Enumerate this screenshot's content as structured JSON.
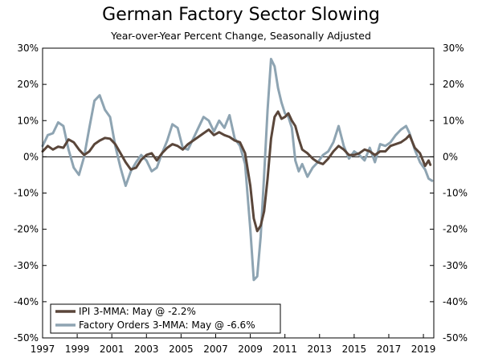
{
  "title": "German Factory Sector Slowing",
  "subtitle": "Year-over-Year Percent Change, Seasonally Adjusted",
  "colors": {
    "ipi": "#5a463a",
    "orders": "#8ea4b2",
    "zero": "#000000"
  },
  "chart_data": {
    "type": "line",
    "title": "German Factory Sector Slowing",
    "subtitle": "Year-over-Year Percent Change, Seasonally Adjusted",
    "xlabel": "",
    "ylabel": "",
    "xlim": [
      1997,
      2019.6
    ],
    "ylim": [
      -50,
      30
    ],
    "y_ticks": [
      30,
      20,
      10,
      0,
      -10,
      -20,
      -30,
      -40,
      -50
    ],
    "y_tick_labels": [
      "30%",
      "20%",
      "10%",
      "0%",
      "-10%",
      "-20%",
      "-30%",
      "-40%",
      "-50%"
    ],
    "x_ticks": [
      1997,
      1999,
      2001,
      2003,
      2005,
      2007,
      2009,
      2011,
      2013,
      2015,
      2017,
      2019
    ],
    "x_tick_labels": [
      "1997",
      "1999",
      "2001",
      "2003",
      "2005",
      "2007",
      "2009",
      "2011",
      "2013",
      "2015",
      "2017",
      "2019"
    ],
    "legend_position": "bottom-left",
    "series": [
      {
        "name": "IPI 3-MMA: May @ -2.2%",
        "points": [
          [
            1997.0,
            1.5
          ],
          [
            1997.3,
            3.0
          ],
          [
            1997.6,
            2.0
          ],
          [
            1997.9,
            2.8
          ],
          [
            1998.2,
            2.5
          ],
          [
            1998.5,
            4.8
          ],
          [
            1998.8,
            4.0
          ],
          [
            1999.1,
            2.0
          ],
          [
            1999.4,
            0.5
          ],
          [
            1999.7,
            1.5
          ],
          [
            2000.0,
            3.5
          ],
          [
            2000.3,
            4.5
          ],
          [
            2000.6,
            5.2
          ],
          [
            2000.9,
            5.0
          ],
          [
            2001.2,
            3.5
          ],
          [
            2001.5,
            1.0
          ],
          [
            2001.8,
            -1.5
          ],
          [
            2002.1,
            -3.5
          ],
          [
            2002.4,
            -3.0
          ],
          [
            2002.7,
            -0.8
          ],
          [
            2003.0,
            0.5
          ],
          [
            2003.3,
            1.0
          ],
          [
            2003.6,
            -1.0
          ],
          [
            2003.9,
            1.0
          ],
          [
            2004.2,
            2.5
          ],
          [
            2004.5,
            3.5
          ],
          [
            2004.8,
            3.0
          ],
          [
            2005.1,
            2.0
          ],
          [
            2005.4,
            3.5
          ],
          [
            2005.7,
            4.5
          ],
          [
            2006.0,
            5.5
          ],
          [
            2006.3,
            6.5
          ],
          [
            2006.6,
            7.5
          ],
          [
            2006.9,
            6.0
          ],
          [
            2007.2,
            6.8
          ],
          [
            2007.5,
            6.0
          ],
          [
            2007.8,
            5.5
          ],
          [
            2008.1,
            4.5
          ],
          [
            2008.4,
            4.0
          ],
          [
            2008.7,
            1.0
          ],
          [
            2009.0,
            -8.0
          ],
          [
            2009.2,
            -17.0
          ],
          [
            2009.4,
            -20.5
          ],
          [
            2009.6,
            -19.0
          ],
          [
            2009.8,
            -15.0
          ],
          [
            2010.0,
            -6.0
          ],
          [
            2010.2,
            5.0
          ],
          [
            2010.4,
            11.0
          ],
          [
            2010.6,
            12.5
          ],
          [
            2010.8,
            10.5
          ],
          [
            2011.0,
            11.0
          ],
          [
            2011.2,
            12.0
          ],
          [
            2011.4,
            10.0
          ],
          [
            2011.6,
            8.5
          ],
          [
            2011.8,
            5.0
          ],
          [
            2012.0,
            2.0
          ],
          [
            2012.3,
            1.0
          ],
          [
            2012.6,
            -0.5
          ],
          [
            2012.9,
            -1.5
          ],
          [
            2013.2,
            -2.0
          ],
          [
            2013.5,
            -0.5
          ],
          [
            2013.8,
            1.5
          ],
          [
            2014.1,
            3.0
          ],
          [
            2014.4,
            2.0
          ],
          [
            2014.7,
            0.5
          ],
          [
            2015.0,
            0.5
          ],
          [
            2015.3,
            1.0
          ],
          [
            2015.6,
            2.0
          ],
          [
            2015.9,
            1.5
          ],
          [
            2016.2,
            0.5
          ],
          [
            2016.5,
            1.5
          ],
          [
            2016.8,
            1.5
          ],
          [
            2017.1,
            3.0
          ],
          [
            2017.4,
            3.5
          ],
          [
            2017.7,
            4.0
          ],
          [
            2018.0,
            5.0
          ],
          [
            2018.2,
            6.0
          ],
          [
            2018.5,
            2.5
          ],
          [
            2018.8,
            1.0
          ],
          [
            2019.1,
            -2.5
          ],
          [
            2019.3,
            -1.0
          ],
          [
            2019.4,
            -2.2
          ]
        ]
      },
      {
        "name": "Factory Orders 3-MMA: May @ -6.6%",
        "points": [
          [
            1997.0,
            3.0
          ],
          [
            1997.3,
            6.0
          ],
          [
            1997.6,
            6.5
          ],
          [
            1997.9,
            9.5
          ],
          [
            1998.2,
            8.5
          ],
          [
            1998.5,
            2.0
          ],
          [
            1998.8,
            -3.0
          ],
          [
            1999.1,
            -5.0
          ],
          [
            1999.4,
            0.0
          ],
          [
            1999.7,
            8.0
          ],
          [
            2000.0,
            15.5
          ],
          [
            2000.3,
            17.0
          ],
          [
            2000.6,
            13.0
          ],
          [
            2000.9,
            11.0
          ],
          [
            2001.2,
            3.0
          ],
          [
            2001.5,
            -3.0
          ],
          [
            2001.8,
            -8.0
          ],
          [
            2002.1,
            -4.0
          ],
          [
            2002.4,
            -1.5
          ],
          [
            2002.7,
            0.5
          ],
          [
            2003.0,
            -1.0
          ],
          [
            2003.3,
            -4.0
          ],
          [
            2003.6,
            -3.0
          ],
          [
            2003.9,
            1.0
          ],
          [
            2004.2,
            4.5
          ],
          [
            2004.5,
            9.0
          ],
          [
            2004.8,
            8.0
          ],
          [
            2005.1,
            2.5
          ],
          [
            2005.4,
            2.0
          ],
          [
            2005.7,
            5.0
          ],
          [
            2006.0,
            8.0
          ],
          [
            2006.3,
            11.0
          ],
          [
            2006.6,
            10.0
          ],
          [
            2006.9,
            7.0
          ],
          [
            2007.2,
            10.0
          ],
          [
            2007.5,
            8.0
          ],
          [
            2007.8,
            11.5
          ],
          [
            2008.1,
            5.0
          ],
          [
            2008.4,
            3.0
          ],
          [
            2008.7,
            -2.0
          ],
          [
            2009.0,
            -20.0
          ],
          [
            2009.2,
            -34.0
          ],
          [
            2009.4,
            -33.0
          ],
          [
            2009.6,
            -22.0
          ],
          [
            2009.8,
            -5.0
          ],
          [
            2010.0,
            13.0
          ],
          [
            2010.2,
            27.0
          ],
          [
            2010.4,
            25.0
          ],
          [
            2010.6,
            19.0
          ],
          [
            2010.8,
            15.0
          ],
          [
            2011.0,
            12.0
          ],
          [
            2011.2,
            11.0
          ],
          [
            2011.4,
            8.0
          ],
          [
            2011.6,
            -1.0
          ],
          [
            2011.8,
            -4.0
          ],
          [
            2012.0,
            -2.0
          ],
          [
            2012.3,
            -5.5
          ],
          [
            2012.6,
            -3.0
          ],
          [
            2012.9,
            -1.5
          ],
          [
            2013.2,
            0.5
          ],
          [
            2013.5,
            1.5
          ],
          [
            2013.8,
            4.0
          ],
          [
            2014.1,
            8.5
          ],
          [
            2014.4,
            3.0
          ],
          [
            2014.7,
            -0.5
          ],
          [
            2015.0,
            1.5
          ],
          [
            2015.3,
            0.5
          ],
          [
            2015.6,
            -1.0
          ],
          [
            2015.9,
            2.5
          ],
          [
            2016.2,
            -1.5
          ],
          [
            2016.5,
            3.5
          ],
          [
            2016.8,
            3.0
          ],
          [
            2017.1,
            4.0
          ],
          [
            2017.4,
            6.0
          ],
          [
            2017.7,
            7.5
          ],
          [
            2018.0,
            8.5
          ],
          [
            2018.2,
            6.5
          ],
          [
            2018.5,
            2.0
          ],
          [
            2018.8,
            -1.5
          ],
          [
            2019.1,
            -3.5
          ],
          [
            2019.3,
            -6.0
          ],
          [
            2019.5,
            -6.6
          ]
        ]
      }
    ]
  }
}
